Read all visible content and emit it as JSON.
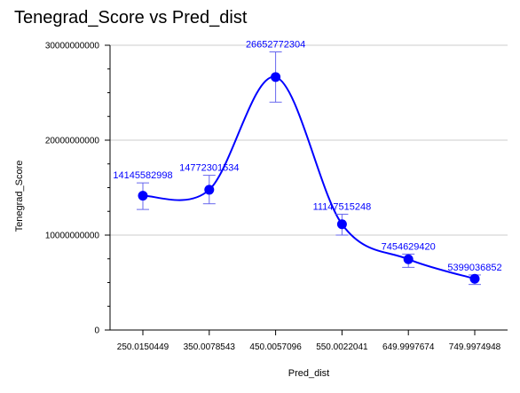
{
  "chart_data": {
    "type": "line",
    "title": "Tenegrad_Score vs Pred_dist",
    "xlabel": "Pred_dist",
    "ylabel": "Tenegrad_Score",
    "categories": [
      "250.0150449",
      "350.0078543",
      "450.0057096",
      "550.0022041",
      "649.9997674",
      "749.9974948"
    ],
    "series": [
      {
        "values": [
          14145582998,
          14772301534,
          26652772304,
          11147515248,
          7454629420,
          5399036852
        ],
        "data_labels": [
          "14145582998",
          "14772301534",
          "26652772304",
          "11147515248",
          "7454629420",
          "5399036852"
        ],
        "error_low": [
          12700000000,
          13300000000,
          24000000000,
          10000000000,
          6600000000,
          4800000000
        ],
        "error_high": [
          15500000000,
          16300000000,
          29300000000,
          12200000000,
          8000000000,
          5800000000
        ]
      }
    ],
    "ylim": [
      0,
      30000000000
    ],
    "yticks": [
      0,
      10000000000,
      20000000000,
      30000000000
    ],
    "ytick_labels": [
      "0",
      "10000000000",
      "20000000000",
      "30000000000"
    ],
    "grid": "horizontal",
    "colors": {
      "series": "#0000ff",
      "grid": "#cccccc",
      "error_bar": "#6666ee"
    }
  }
}
